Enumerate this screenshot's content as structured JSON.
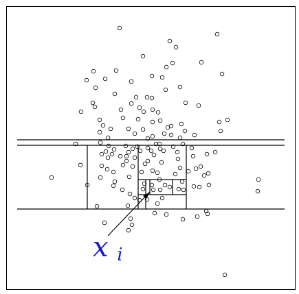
{
  "figure": {
    "point_label": {
      "main": "x",
      "subscript": "i"
    },
    "colors": {
      "frame": "#000000",
      "lines": "#000000",
      "points": "#000000",
      "label": "#1a1acc",
      "background": "#ffffff"
    },
    "points_count": 160
  }
}
